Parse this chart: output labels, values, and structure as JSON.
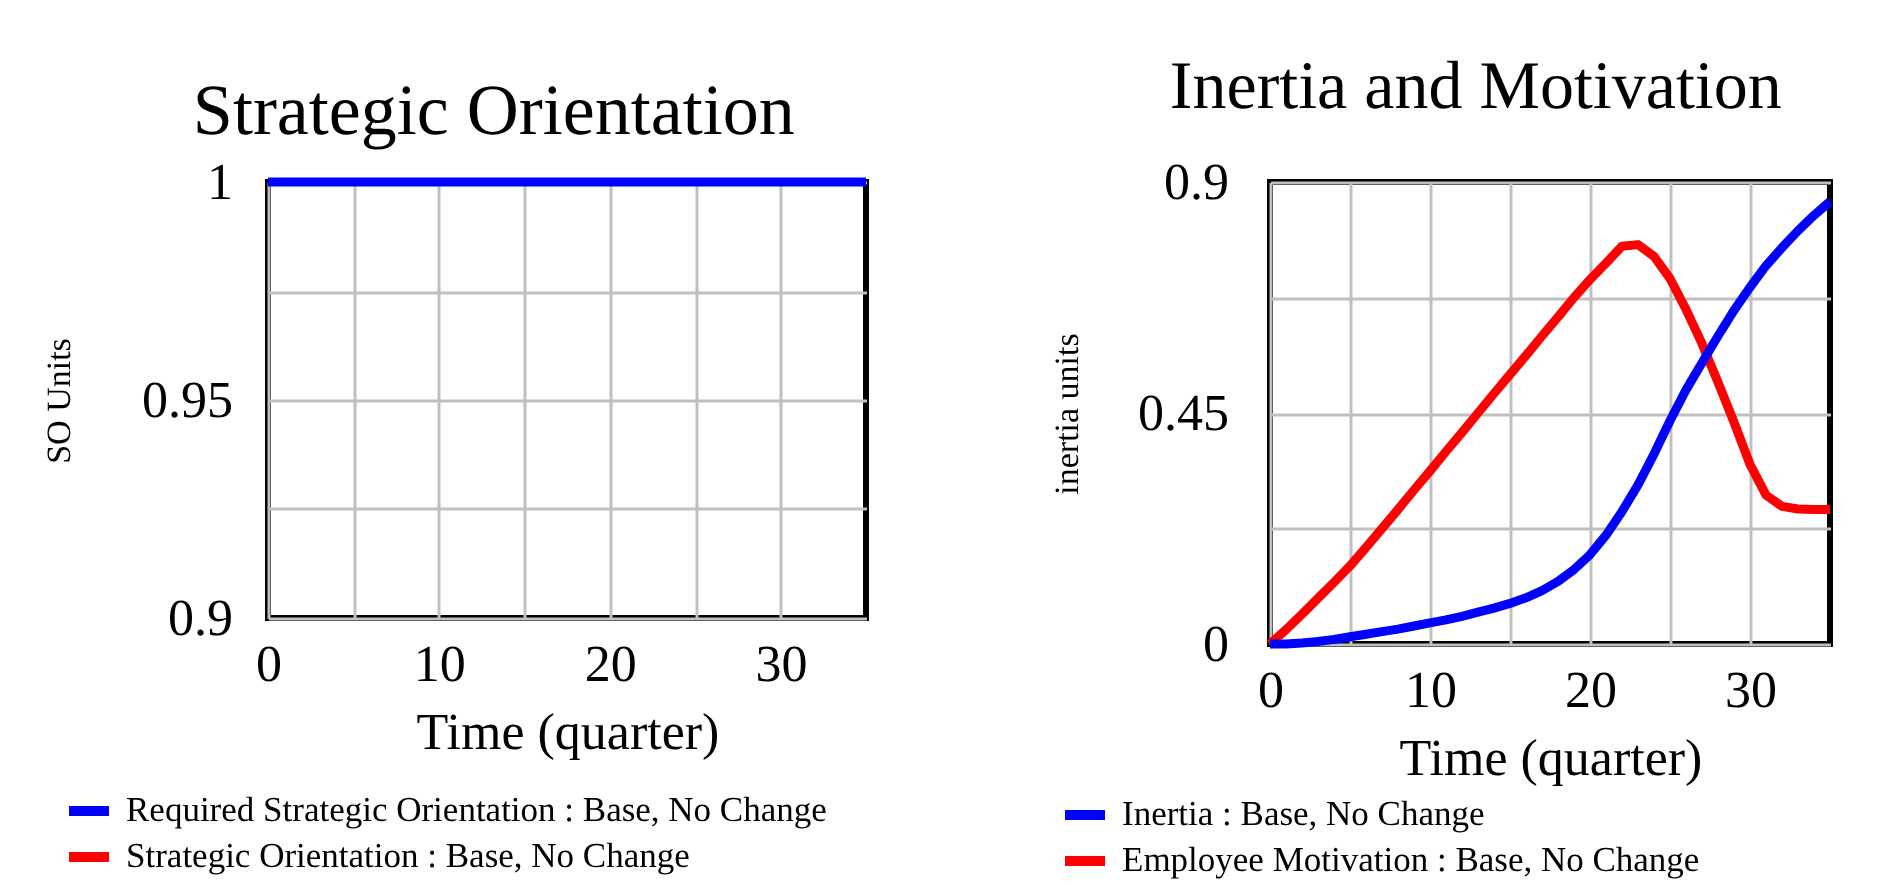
{
  "chart_data": [
    {
      "type": "line",
      "title": "Strategic Orientation",
      "xlabel": "Time (quarter)",
      "ylabel": "SO Units",
      "x": [
        0,
        35
      ],
      "series": [
        {
          "name": "Required Strategic Orientation : Base, No Change",
          "color": "#0000ff",
          "values": [
            1,
            1
          ]
        },
        {
          "name": "Strategic Orientation : Base, No Change",
          "color": "#ff0000",
          "values": [
            null,
            null
          ]
        }
      ],
      "xlim": [
        0,
        35
      ],
      "ylim": [
        0.9,
        1
      ],
      "xticks": [
        0,
        {
          "value": 5,
          "label": null
        },
        10,
        {
          "value": 15,
          "label": null
        },
        20,
        {
          "value": 25,
          "label": null
        },
        30
      ],
      "yticks": [
        0.9,
        {
          "value": 0.925,
          "label": null
        },
        0.95,
        {
          "value": 0.975,
          "label": null
        },
        1
      ],
      "grid": true,
      "legend": "bottom"
    },
    {
      "type": "line",
      "title": "Inertia and Motivation",
      "xlabel": "Time (quarter)",
      "ylabel": "inertia units",
      "x": [
        0,
        1,
        2,
        3,
        4,
        5,
        6,
        7,
        8,
        9,
        10,
        11,
        12,
        13,
        14,
        15,
        16,
        17,
        18,
        19,
        20,
        21,
        22,
        23,
        24,
        25,
        26,
        27,
        28,
        29,
        30,
        31,
        32,
        33,
        34,
        35
      ],
      "series": [
        {
          "name": "Inertia : Base, No Change",
          "color": "#0000ff",
          "values": [
            0,
            0,
            0.002,
            0.005,
            0.009,
            0.014,
            0.019,
            0.024,
            0.029,
            0.035,
            0.041,
            0.047,
            0.054,
            0.062,
            0.07,
            0.079,
            0.09,
            0.104,
            0.122,
            0.145,
            0.174,
            0.212,
            0.258,
            0.31,
            0.37,
            0.435,
            0.495,
            0.548,
            0.6,
            0.65,
            0.695,
            0.737,
            0.772,
            0.805,
            0.835,
            0.862
          ]
        },
        {
          "name": "Employee Motivation : Base, No Change",
          "color": "#ff0000",
          "values": [
            0,
            0.028,
            0.058,
            0.089,
            0.12,
            0.152,
            0.188,
            0.225,
            0.262,
            0.3,
            0.337,
            0.375,
            0.412,
            0.45,
            0.488,
            0.525,
            0.562,
            0.6,
            0.637,
            0.675,
            0.71,
            0.742,
            0.775,
            0.778,
            0.755,
            0.712,
            0.652,
            0.585,
            0.51,
            0.432,
            0.35,
            0.29,
            0.268,
            0.263,
            0.262,
            0.262
          ]
        }
      ],
      "xlim": [
        0,
        35
      ],
      "ylim": [
        0,
        0.9
      ],
      "xticks": [
        0,
        {
          "value": 5,
          "label": null
        },
        10,
        {
          "value": 15,
          "label": null
        },
        20,
        {
          "value": 25,
          "label": null
        },
        30
      ],
      "yticks": [
        0,
        {
          "value": 0.225,
          "label": null
        },
        0.45,
        {
          "value": 0.675,
          "label": null
        },
        0.9
      ],
      "grid": true,
      "legend": "bottom"
    }
  ]
}
